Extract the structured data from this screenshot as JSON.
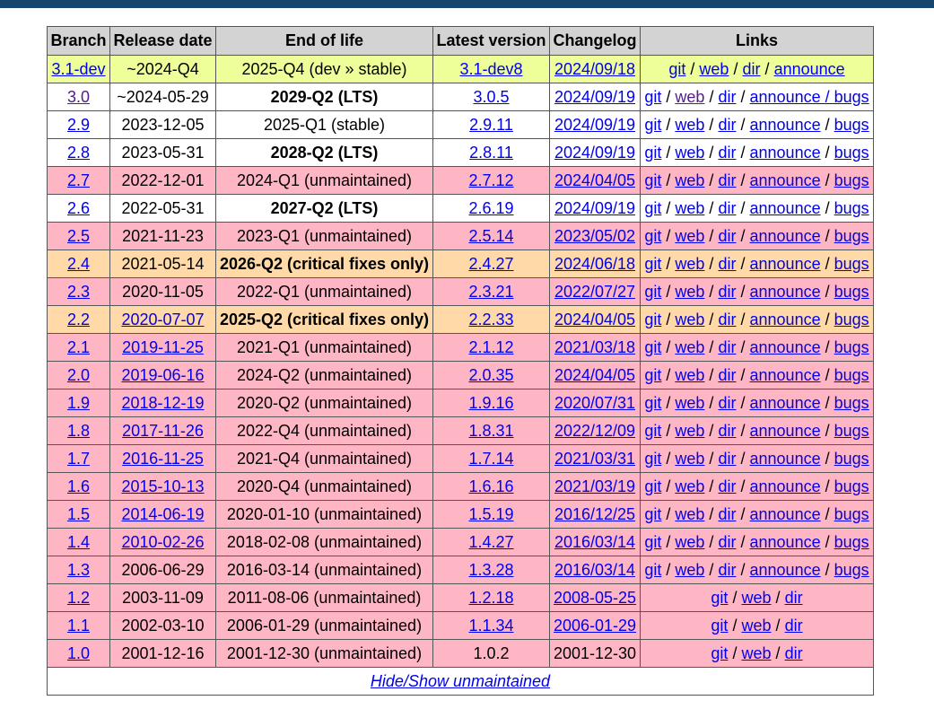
{
  "columns": [
    "Branch",
    "Release date",
    "End of life",
    "Latest version",
    "Changelog",
    "Links"
  ],
  "separator": "/",
  "rows": [
    {
      "cls": "dev",
      "branch": "3.1-dev",
      "branch_link": true,
      "release": "~2024-Q4",
      "release_link": false,
      "eol": "2025-Q4 (dev » stable)",
      "eol_bold": false,
      "latest": "3.1-dev8",
      "latest_link": true,
      "changelog": "2024/09/18",
      "changelog_link": true,
      "links": [
        "git",
        "web",
        "dir",
        "announce"
      ],
      "links_center": true
    },
    {
      "cls": "lts",
      "branch": "3.0",
      "branch_link": true,
      "branch_visited": true,
      "release": "~2024-05-29",
      "release_link": false,
      "eol": "2029-Q2 (LTS)",
      "eol_bold": true,
      "latest": "3.0.5",
      "latest_link": true,
      "changelog": "2024/09/19",
      "changelog_link": true,
      "links": [
        "git",
        "web",
        "dir",
        "announce / bugs"
      ],
      "web_visited": true
    },
    {
      "cls": "stable",
      "branch": "2.9",
      "branch_link": true,
      "release": "2023-12-05",
      "release_link": false,
      "eol": "2025-Q1 (stable)",
      "eol_bold": false,
      "latest": "2.9.11",
      "latest_link": true,
      "changelog": "2024/09/19",
      "changelog_link": true,
      "links": [
        "git",
        "web",
        "dir",
        "announce",
        "bugs"
      ]
    },
    {
      "cls": "lts",
      "branch": "2.8",
      "branch_link": true,
      "release": "2023-05-31",
      "release_link": false,
      "eol": "2028-Q2 (LTS)",
      "eol_bold": true,
      "latest": "2.8.11",
      "latest_link": true,
      "changelog": "2024/09/19",
      "changelog_link": true,
      "links": [
        "git",
        "web",
        "dir",
        "announce",
        "bugs"
      ]
    },
    {
      "cls": "unm",
      "branch": "2.7",
      "branch_link": true,
      "release": "2022-12-01",
      "release_link": false,
      "eol": "2024-Q1 (unmaintained)",
      "eol_bold": false,
      "latest": "2.7.12",
      "latest_link": true,
      "changelog": "2024/04/05",
      "changelog_link": true,
      "links": [
        "git",
        "web",
        "dir",
        "announce",
        "bugs"
      ]
    },
    {
      "cls": "lts",
      "branch": "2.6",
      "branch_link": true,
      "release": "2022-05-31",
      "release_link": false,
      "eol": "2027-Q2 (LTS)",
      "eol_bold": true,
      "latest": "2.6.19",
      "latest_link": true,
      "changelog": "2024/09/19",
      "changelog_link": true,
      "links": [
        "git",
        "web",
        "dir",
        "announce",
        "bugs"
      ]
    },
    {
      "cls": "unm",
      "branch": "2.5",
      "branch_link": true,
      "release": "2021-11-23",
      "release_link": false,
      "eol": "2023-Q1 (unmaintained)",
      "eol_bold": false,
      "latest": "2.5.14",
      "latest_link": true,
      "changelog": "2023/05/02",
      "changelog_link": true,
      "links": [
        "git",
        "web",
        "dir",
        "announce",
        "bugs"
      ]
    },
    {
      "cls": "crit",
      "branch": "2.4",
      "branch_link": true,
      "release": "2021-05-14",
      "release_link": false,
      "eol": "2026-Q2 (critical fixes only)",
      "eol_bold": true,
      "latest": "2.4.27",
      "latest_link": true,
      "changelog": "2024/06/18",
      "changelog_link": true,
      "links": [
        "git",
        "web",
        "dir",
        "announce",
        "bugs"
      ]
    },
    {
      "cls": "unm",
      "branch": "2.3",
      "branch_link": true,
      "release": "2020-11-05",
      "release_link": false,
      "eol": "2022-Q1 (unmaintained)",
      "eol_bold": false,
      "latest": "2.3.21",
      "latest_link": true,
      "changelog": "2022/07/27",
      "changelog_link": true,
      "links": [
        "git",
        "web",
        "dir",
        "announce",
        "bugs"
      ]
    },
    {
      "cls": "crit",
      "branch": "2.2",
      "branch_link": true,
      "release": "2020-07-07",
      "release_link": true,
      "eol": "2025-Q2 (critical fixes only)",
      "eol_bold": true,
      "latest": "2.2.33",
      "latest_link": true,
      "changelog": "2024/04/05",
      "changelog_link": true,
      "links": [
        "git",
        "web",
        "dir",
        "announce",
        "bugs"
      ]
    },
    {
      "cls": "unm",
      "branch": "2.1",
      "branch_link": true,
      "release": "2019-11-25",
      "release_link": true,
      "eol": "2021-Q1 (unmaintained)",
      "eol_bold": false,
      "latest": "2.1.12",
      "latest_link": true,
      "changelog": "2021/03/18",
      "changelog_link": true,
      "links": [
        "git",
        "web",
        "dir",
        "announce",
        "bugs"
      ]
    },
    {
      "cls": "unm",
      "branch": "2.0",
      "branch_link": true,
      "release": "2019-06-16",
      "release_link": true,
      "eol": "2024-Q2 (unmaintained)",
      "eol_bold": false,
      "latest": "2.0.35",
      "latest_link": true,
      "changelog": "2024/04/05",
      "changelog_link": true,
      "links": [
        "git",
        "web",
        "dir",
        "announce",
        "bugs"
      ]
    },
    {
      "cls": "unm",
      "branch": "1.9",
      "branch_link": true,
      "release": "2018-12-19",
      "release_link": true,
      "eol": "2020-Q2 (unmaintained)",
      "eol_bold": false,
      "latest": "1.9.16",
      "latest_link": true,
      "changelog": "2020/07/31",
      "changelog_link": true,
      "links": [
        "git",
        "web",
        "dir",
        "announce",
        "bugs"
      ]
    },
    {
      "cls": "unm",
      "branch": "1.8",
      "branch_link": true,
      "release": "2017-11-26",
      "release_link": true,
      "eol": "2022-Q4 (unmaintained)",
      "eol_bold": false,
      "latest": "1.8.31",
      "latest_link": true,
      "changelog": "2022/12/09",
      "changelog_link": true,
      "links": [
        "git",
        "web",
        "dir",
        "announce",
        "bugs"
      ]
    },
    {
      "cls": "unm",
      "branch": "1.7",
      "branch_link": true,
      "release": "2016-11-25",
      "release_link": true,
      "eol": "2021-Q4 (unmaintained)",
      "eol_bold": false,
      "latest": "1.7.14",
      "latest_link": true,
      "changelog": "2021/03/31",
      "changelog_link": true,
      "links": [
        "git",
        "web",
        "dir",
        "announce",
        "bugs"
      ]
    },
    {
      "cls": "unm",
      "branch": "1.6",
      "branch_link": true,
      "release": "2015-10-13",
      "release_link": true,
      "eol": "2020-Q4 (unmaintained)",
      "eol_bold": false,
      "latest": "1.6.16",
      "latest_link": true,
      "changelog": "2021/03/19",
      "changelog_link": true,
      "links": [
        "git",
        "web",
        "dir",
        "announce",
        "bugs"
      ]
    },
    {
      "cls": "unm",
      "branch": "1.5",
      "branch_link": true,
      "release": "2014-06-19",
      "release_link": true,
      "eol": "2020-01-10 (unmaintained)",
      "eol_bold": false,
      "latest": "1.5.19",
      "latest_link": true,
      "changelog": "2016/12/25",
      "changelog_link": true,
      "links": [
        "git",
        "web",
        "dir",
        "announce",
        "bugs"
      ]
    },
    {
      "cls": "unm",
      "branch": "1.4",
      "branch_link": true,
      "release": "2010-02-26",
      "release_link": true,
      "eol": "2018-02-08 (unmaintained)",
      "eol_bold": false,
      "latest": "1.4.27",
      "latest_link": true,
      "changelog": "2016/03/14",
      "changelog_link": true,
      "links": [
        "git",
        "web",
        "dir",
        "announce",
        "bugs"
      ]
    },
    {
      "cls": "unm",
      "branch": "1.3",
      "branch_link": true,
      "release": "2006-06-29",
      "release_link": false,
      "eol": "2016-03-14 (unmaintained)",
      "eol_bold": false,
      "latest": "1.3.28",
      "latest_link": true,
      "changelog": "2016/03/14",
      "changelog_link": true,
      "links": [
        "git",
        "web",
        "dir",
        "announce",
        "bugs"
      ]
    },
    {
      "cls": "unm",
      "branch": "1.2",
      "branch_link": true,
      "release": "2003-11-09",
      "release_link": false,
      "eol": "2011-08-06 (unmaintained)",
      "eol_bold": false,
      "latest": "1.2.18",
      "latest_link": true,
      "changelog": "2008-05-25",
      "changelog_link": true,
      "links": [
        "git",
        "web",
        "dir"
      ],
      "links_center": true
    },
    {
      "cls": "unm",
      "branch": "1.1",
      "branch_link": true,
      "release": "2002-03-10",
      "release_link": false,
      "eol": "2006-01-29 (unmaintained)",
      "eol_bold": false,
      "latest": "1.1.34",
      "latest_link": true,
      "changelog": "2006-01-29",
      "changelog_link": true,
      "links": [
        "git",
        "web",
        "dir"
      ],
      "links_center": true
    },
    {
      "cls": "unm",
      "branch": "1.0",
      "branch_link": true,
      "release": "2001-12-16",
      "release_link": false,
      "eol": "2001-12-30 (unmaintained)",
      "eol_bold": false,
      "latest": "1.0.2",
      "latest_link": false,
      "changelog": "2001-12-30",
      "changelog_link": false,
      "links": [
        "git",
        "web",
        "dir"
      ],
      "links_center": true
    }
  ],
  "footer": {
    "toggle_label": "Hide/Show unmaintained"
  }
}
